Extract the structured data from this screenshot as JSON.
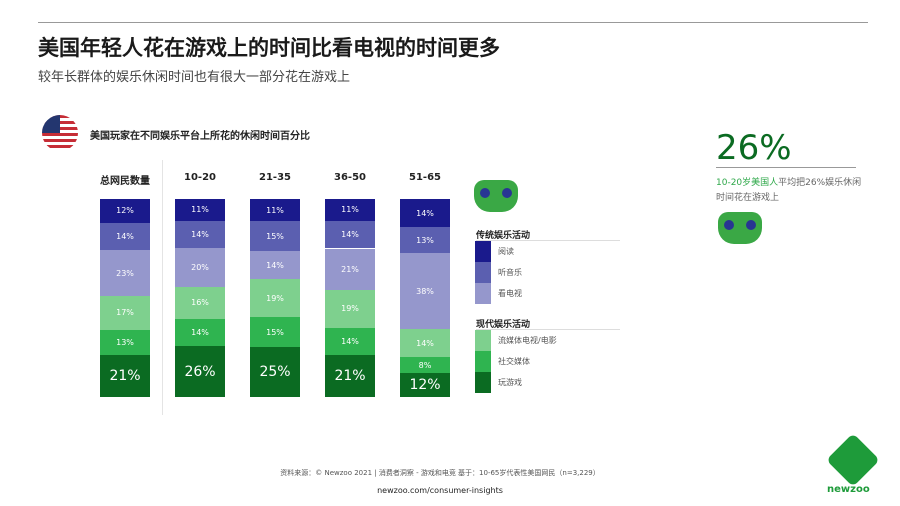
{
  "header": {
    "title": "美国年轻人花在游戏上的时间比看电视的时间更多",
    "subtitle": "较年长群体的娱乐休闲时间也有很大一部分花在游戏上"
  },
  "chart_data": {
    "type": "bar",
    "stacked": true,
    "title": "美国玩家在不同娱乐平台上所花的休闲时间百分比",
    "categories": [
      "总网民数量",
      "10-20",
      "21-35",
      "36-50",
      "51-65"
    ],
    "series": [
      {
        "name": "阅读",
        "color": "#1a1a8c",
        "values": [
          12,
          11,
          11,
          11,
          14
        ]
      },
      {
        "name": "听音乐",
        "color": "#5b5fb0",
        "values": [
          14,
          14,
          15,
          14,
          13
        ]
      },
      {
        "name": "看电视",
        "color": "#9597cc",
        "values": [
          23,
          20,
          14,
          21,
          38
        ]
      },
      {
        "name": "流媒体电视/电影",
        "color": "#7ed08e",
        "values": [
          17,
          16,
          19,
          19,
          14
        ]
      },
      {
        "name": "社交媒体",
        "color": "#2fb450",
        "values": [
          13,
          14,
          15,
          14,
          8
        ]
      },
      {
        "name": "玩游戏",
        "color": "#0b6b22",
        "values": [
          21,
          26,
          25,
          21,
          12
        ]
      }
    ],
    "legend_groups": [
      {
        "title": "传统娱乐活动",
        "series": [
          0,
          1,
          2
        ]
      },
      {
        "title": "现代娱乐活动",
        "series": [
          3,
          4,
          5
        ]
      }
    ],
    "legend_placement": "right",
    "value_suffix": "%"
  },
  "highlight": {
    "value": "26%",
    "note_highlight": "10-20岁美国人",
    "note_rest": "平均把26%娱乐休闲时间花在游戏上"
  },
  "footer": {
    "source": "资料来源：© Newzoo 2021 | 消费者洞察 - 游戏和电竞   基于：10-65岁代表性美国网民（n=3,229）",
    "url": "newzoo.com/consumer-insights",
    "logo": "newzoo"
  },
  "icons": {
    "flag": "us-flag-icon",
    "gamepad": "gamepad-icon"
  }
}
